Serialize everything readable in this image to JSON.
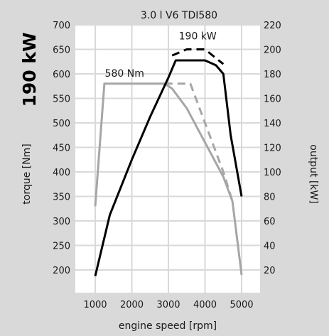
{
  "power_badge": "190 kW",
  "chart_data": {
    "type": "line",
    "title": "3.0 l V6 TDI580",
    "xlabel": "engine speed [rpm]",
    "ylabel_left": "torque [Nm]",
    "ylabel_right": "output [kW]",
    "xlim": [
      1000,
      5000
    ],
    "x_ticks": [
      1000,
      2000,
      3000,
      4000,
      5000
    ],
    "y_left_lim": [
      200,
      700
    ],
    "y_left_ticks": [
      200,
      250,
      300,
      350,
      400,
      450,
      500,
      550,
      600,
      650,
      700
    ],
    "y_right_lim": [
      20,
      220
    ],
    "y_right_ticks": [
      20,
      40,
      60,
      80,
      100,
      120,
      140,
      160,
      180,
      200,
      220
    ],
    "grid": true,
    "annotations": [
      "580 Nm",
      "190 kW"
    ],
    "colors": {
      "torque": "#a6a6a6",
      "power": "#000000",
      "background": "#d9d9d9",
      "plot": "#ffffff",
      "grid": "#d9d9d9"
    },
    "series": [
      {
        "axis": "left",
        "style": "solid",
        "x": [
          1000,
          1250,
          2000,
          2900,
          3100,
          3500,
          4000,
          4500,
          4750,
          5000
        ],
        "y": [
          330,
          580,
          580,
          580,
          570,
          530,
          460,
          390,
          340,
          190
        ]
      },
      {
        "axis": "left",
        "style": "dashed",
        "x": [
          2900,
          3500,
          3600,
          4000,
          4500,
          4750
        ],
        "y": [
          580,
          580,
          580,
          500,
          400,
          340
        ]
      },
      {
        "axis": "right",
        "style": "solid",
        "x": [
          1000,
          1400,
          2000,
          2500,
          3000,
          3200,
          3500,
          4000,
          4300,
          4500,
          4700,
          5000
        ],
        "y": [
          15,
          65,
          110,
          145,
          177,
          191,
          191,
          191,
          187,
          180,
          130,
          80
        ]
      },
      {
        "axis": "right",
        "style": "dashed",
        "x": [
          3100,
          3500,
          4000,
          4500
        ],
        "y": [
          195,
          200,
          200,
          188
        ]
      }
    ]
  }
}
